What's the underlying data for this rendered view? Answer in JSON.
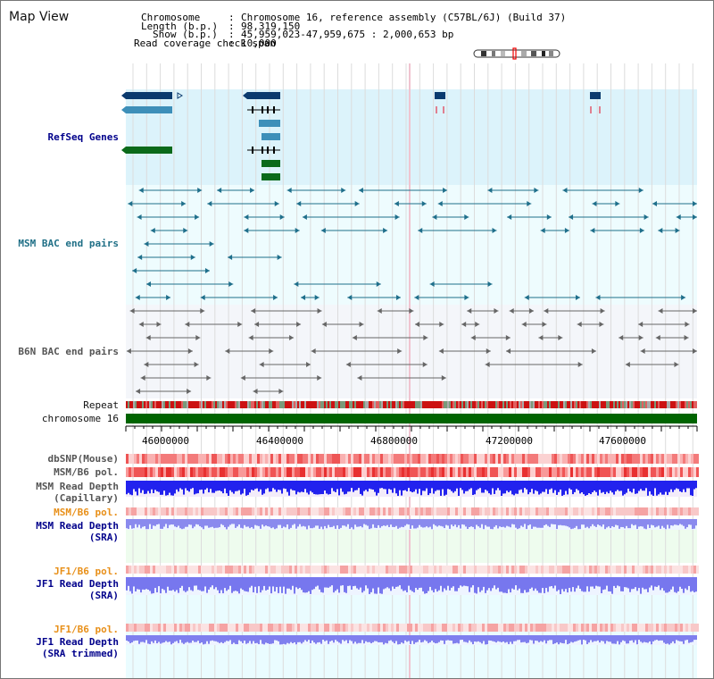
{
  "window": {
    "title": "Map View"
  },
  "header": {
    "chromosome_key": "Chromosome",
    "chromosome_value": "Chromosome 16, reference assembly (C57BL/6J) (Build 37)",
    "length_key": "Length (b.p.)",
    "length_value": "98,319,150",
    "show_key": "Show (b.p.)",
    "show_value": "45,959,023-47,959,675 : 2,000,653 bp",
    "coverage_key": "Read coverage check span",
    "coverage_value": "10,000"
  },
  "tracks": {
    "refseq_label": "RefSeq Genes",
    "msm_bac_label": "MSM BAC end pairs",
    "b6n_bac_label": "B6N BAC end pairs",
    "repeat_label": "Repeat",
    "chromosome_label": "chromosome 16",
    "dbsnp_label": "dbSNP(Mouse)",
    "msm_pol_label": "MSM/B6 pol.",
    "msm_depth_cap_label_1": "MSM Read Depth",
    "msm_depth_cap_label_2": "(Capillary)",
    "msm_pol_sra_label": "MSM/B6 pol.",
    "msm_depth_sra_label_1": "MSM Read Depth",
    "msm_depth_sra_label_2": "(SRA)",
    "jf1_pol_label": "JF1/B6 pol.",
    "jf1_depth_label_1": "JF1 Read Depth",
    "jf1_depth_label_2": "(SRA)",
    "jf1_pol_trim_label": "JF1/B6 pol.",
    "jf1_depth_trim_label_1": "JF1 Read Depth",
    "jf1_depth_trim_label_2": "(SRA trimmed)"
  },
  "axis": {
    "ticks": [
      "46000000",
      "46400000",
      "46800000",
      "47200000",
      "47600000"
    ]
  },
  "colors": {
    "refseq_bg": "#dcf3fb",
    "bac_bg": "#eefcfe",
    "b6n_bg": "#f4f6fa",
    "chromosome_bar": "#006400",
    "label_blue": "#00008b",
    "label_orange": "#e8901a"
  },
  "icons": {
    "ideogram": "chromosome-ideogram-icon"
  }
}
